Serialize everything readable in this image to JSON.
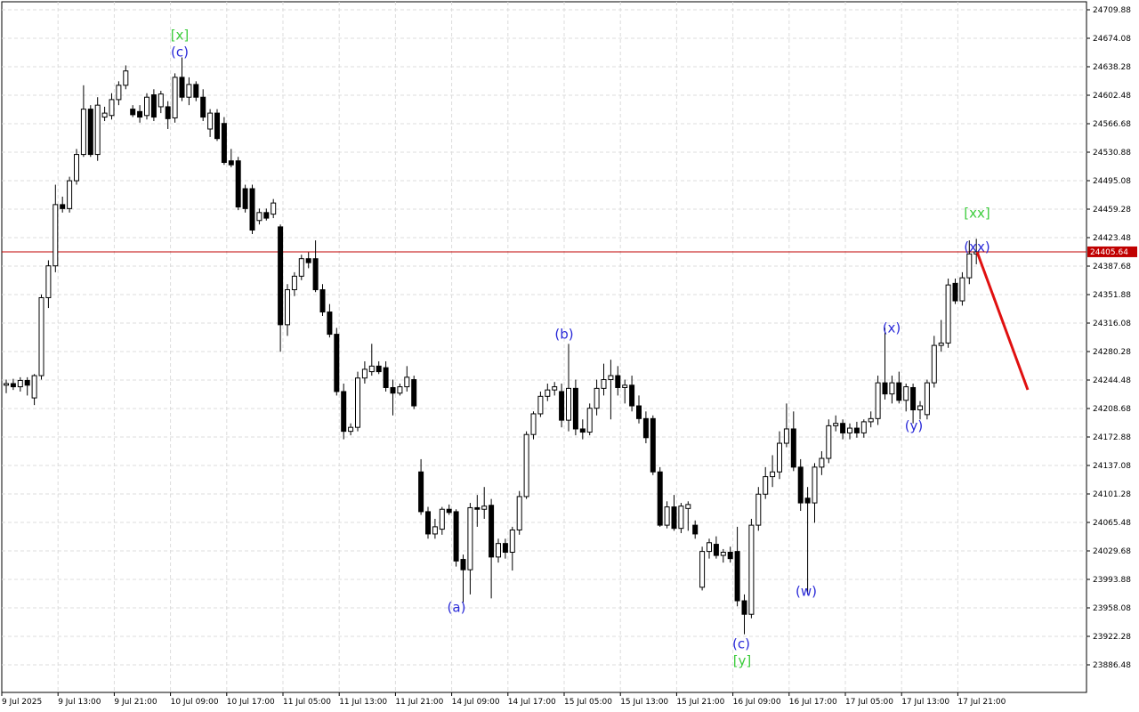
{
  "chart_data": {
    "type": "candlestick",
    "categories": [
      "9 Jul 2025",
      null,
      null,
      null,
      null,
      null,
      null,
      null,
      "9 Jul 13:00",
      null,
      null,
      null,
      null,
      null,
      null,
      null,
      "9 Jul 21:00",
      null,
      null,
      null,
      null,
      null,
      null,
      null,
      "10 Jul 09:00",
      null,
      null,
      null,
      null,
      null,
      null,
      null,
      "10 Jul 17:00",
      null,
      null,
      null,
      null,
      null,
      null,
      null,
      "11 Jul 05:00",
      null,
      null,
      null,
      null,
      null,
      null,
      null,
      "11 Jul 13:00",
      null,
      null,
      null,
      null,
      null,
      null,
      null,
      "11 Jul 21:00",
      null,
      null,
      null,
      null,
      null,
      null,
      null,
      "14 Jul 09:00",
      null,
      null,
      null,
      null,
      null,
      null,
      null,
      "14 Jul 17:00",
      null,
      null,
      null,
      null,
      null,
      null,
      null,
      "15 Jul 05:00",
      null,
      null,
      null,
      null,
      null,
      null,
      null,
      "15 Jul 13:00",
      null,
      null,
      null,
      null,
      null,
      null,
      null,
      "15 Jul 21:00",
      null,
      null,
      null,
      null,
      null,
      null,
      null,
      "16 Jul 09:00",
      null,
      null,
      null,
      null,
      null,
      null,
      null,
      "16 Jul 17:00",
      null,
      null,
      null,
      null,
      null,
      null,
      null,
      "17 Jul 05:00",
      null,
      null,
      null,
      null,
      null,
      null,
      null,
      "17 Jul 13:00",
      null,
      null,
      null,
      null,
      null,
      null,
      null,
      "17 Jul 21:00",
      null,
      null
    ],
    "open": [
      24238,
      24240,
      24236,
      24244,
      24222,
      24250,
      24348,
      24388,
      24465,
      24460,
      24495,
      24528,
      24585,
      24528,
      24575,
      24577,
      24597,
      24615,
      24585,
      24582,
      24577,
      24603,
      24588,
      24588,
      24574,
      24625,
      24600,
      24616,
      24600,
      24560,
      24580,
      24567,
      24520,
      24520,
      24485,
      24485,
      24445,
      24455,
      24453,
      24437,
      24314,
      24358,
      24375,
      24397,
      24397,
      24358,
      24330,
      24302,
      24230,
      24180,
      24185,
      24247,
      24255,
      24262,
      24260,
      24235,
      24228,
      24236,
      24245,
      24129,
      24079,
      24051,
      24057,
      24082,
      24079,
      24019,
      24006,
      24084,
      24082,
      24087,
      24022,
      24039,
      24028,
      24056,
      24098,
      24176,
      24202,
      24224,
      24232,
      24230,
      24194,
      24234,
      24183,
      24179,
      24209,
      24234,
      24245,
      24250,
      24235,
      24238,
      24212,
      24196,
      24196,
      24129,
      24062,
      24085,
      24058,
      24083,
      24062,
      23984,
      24029,
      24038,
      24024,
      24028,
      24029,
      23967,
      23950,
      24062,
      24101,
      24123,
      24129,
      24165,
      24183,
      24135,
      24096,
      24090,
      24135,
      24146,
      24187,
      24190,
      24178,
      24184,
      24178,
      24192,
      24196,
      24241,
      24227,
      24241,
      24219,
      24235,
      24207,
      24201,
      24241,
      24288,
      24291,
      24366,
      24344,
      24373,
      24403
    ],
    "high": [
      24245,
      24246,
      24248,
      24248,
      24252,
      24352,
      24395,
      24490,
      24475,
      24500,
      24535,
      24615,
      24590,
      24600,
      24588,
      24605,
      24620,
      24640,
      24590,
      24590,
      24605,
      24610,
      24608,
      24595,
      24630,
      24650,
      24625,
      24620,
      24610,
      24585,
      24585,
      24575,
      24535,
      24525,
      24490,
      24490,
      24460,
      24460,
      24472,
      24440,
      24365,
      24380,
      24402,
      24405,
      24420,
      24365,
      24340,
      24310,
      24240,
      24190,
      24255,
      24268,
      24290,
      24268,
      24268,
      24245,
      24240,
      24262,
      24250,
      24145,
      24085,
      24070,
      24085,
      24088,
      24082,
      24025,
      24090,
      24100,
      24110,
      24095,
      24045,
      24045,
      24060,
      24105,
      24180,
      24205,
      24230,
      24240,
      24242,
      24240,
      24290,
      24245,
      24195,
      24215,
      24245,
      24265,
      24270,
      24262,
      24245,
      24250,
      24225,
      24205,
      24200,
      24135,
      24092,
      24100,
      24090,
      24092,
      24068,
      24035,
      24045,
      24048,
      24032,
      24035,
      24060,
      23975,
      24070,
      24110,
      24135,
      24150,
      24180,
      24215,
      24205,
      24145,
      24110,
      24140,
      24155,
      24195,
      24200,
      24195,
      24190,
      24192,
      24195,
      24205,
      24250,
      24310,
      24250,
      24255,
      24240,
      24240,
      24218,
      24245,
      24300,
      24320,
      24372,
      24372,
      24380,
      24420,
      24422
    ],
    "low": [
      24228,
      24232,
      24230,
      24225,
      24213,
      24245,
      24335,
      24380,
      24455,
      24455,
      24490,
      24525,
      24525,
      24520,
      24570,
      24572,
      24590,
      24610,
      24575,
      24568,
      24572,
      24570,
      24580,
      24560,
      24568,
      24595,
      24590,
      24595,
      24570,
      24550,
      24545,
      24515,
      24512,
      24458,
      24455,
      24428,
      24440,
      24445,
      24448,
      24280,
      24300,
      24350,
      24370,
      24385,
      24355,
      24325,
      24298,
      24225,
      24170,
      24175,
      24180,
      24240,
      24250,
      24252,
      24230,
      24200,
      24225,
      24230,
      24208,
      24075,
      24045,
      24045,
      24050,
      24075,
      24010,
      23965,
      23975,
      24060,
      24070,
      23970,
      24015,
      24020,
      24005,
      24050,
      24095,
      24170,
      24198,
      24218,
      24225,
      24185,
      24180,
      24175,
      24170,
      24175,
      24200,
      24225,
      24195,
      24225,
      24215,
      24205,
      24190,
      24165,
      24125,
      24060,
      24058,
      24055,
      24052,
      24055,
      24045,
      23980,
      24020,
      24020,
      24015,
      24015,
      23960,
      23925,
      23945,
      24055,
      24095,
      24110,
      24120,
      24160,
      24130,
      24080,
      23975,
      24065,
      24125,
      24140,
      24180,
      24170,
      24170,
      24172,
      24172,
      24185,
      24188,
      24220,
      24215,
      24215,
      24205,
      24190,
      24195,
      24195,
      24235,
      24280,
      24285,
      24340,
      24338,
      24365,
      24390
    ],
    "close": [
      24240,
      24236,
      24244,
      24238,
      24250,
      24348,
      24388,
      24465,
      24460,
      24495,
      24528,
      24585,
      24528,
      24590,
      24580,
      24597,
      24615,
      24633,
      24578,
      24575,
      24600,
      24575,
      24604,
      24573,
      24625,
      24600,
      24616,
      24600,
      24575,
      24580,
      24548,
      24518,
      24515,
      24462,
      24460,
      24433,
      24455,
      24448,
      24467,
      24314,
      24358,
      24375,
      24397,
      24392,
      24358,
      24330,
      24302,
      24230,
      24180,
      24185,
      24247,
      24258,
      24262,
      24255,
      24235,
      24228,
      24236,
      24248,
      24212,
      24079,
      24051,
      24060,
      24082,
      24078,
      24017,
      24006,
      24084,
      24082,
      24086,
      24022,
      24039,
      24028,
      24056,
      24098,
      24176,
      24202,
      24224,
      24232,
      24236,
      24194,
      24234,
      24183,
      24179,
      24209,
      24234,
      24245,
      24250,
      24235,
      24238,
      24212,
      24196,
      24172,
      24129,
      24062,
      24085,
      24058,
      24086,
      24088,
      24051,
      24029,
      24040,
      24024,
      24028,
      24020,
      23967,
      23950,
      24062,
      24101,
      24123,
      24129,
      24165,
      24183,
      24135,
      24090,
      24090,
      24135,
      24146,
      24187,
      24190,
      24178,
      24184,
      24178,
      24192,
      24196,
      24241,
      24227,
      24241,
      24219,
      24236,
      24207,
      24212,
      24241,
      24288,
      24291,
      24364,
      24344,
      24373,
      24403,
      24405.64
    ],
    "up_color": "#ffffff",
    "down_color": "#000000",
    "wick_color": "#000000",
    "current_price": 24405.64,
    "current_price_color": "#c00000",
    "ylim": [
      23851.8,
      24719.95
    ],
    "yticks": [
      24709.88,
      24674.08,
      24638.28,
      24602.48,
      24566.68,
      24530.88,
      24495.08,
      24459.28,
      24423.48,
      24387.68,
      24351.88,
      24316.08,
      24280.28,
      24244.48,
      24208.68,
      24172.88,
      24137.08,
      24101.28,
      24065.48,
      24029.68,
      23993.88,
      23958.08,
      23922.28,
      23886.48
    ],
    "grid": true,
    "annotations": [
      {
        "text": "[x]",
        "color": "#3ccc3c"
      },
      {
        "text": "(c)",
        "color": "#2a2ad8"
      },
      {
        "text": "(a)",
        "color": "#2a2ad8"
      },
      {
        "text": "(b)",
        "color": "#2a2ad8"
      },
      {
        "text": "(c)",
        "color": "#2a2ad8"
      },
      {
        "text": "[y]",
        "color": "#3ccc3c"
      },
      {
        "text": "(w)",
        "color": "#2a2ad8"
      },
      {
        "text": "(x)",
        "color": "#2a2ad8"
      },
      {
        "text": "(y)",
        "color": "#2a2ad8"
      },
      {
        "text": "(xx)",
        "color": "#2a2ad8"
      },
      {
        "text": "[xx]",
        "color": "#3ccc3c"
      }
    ]
  }
}
